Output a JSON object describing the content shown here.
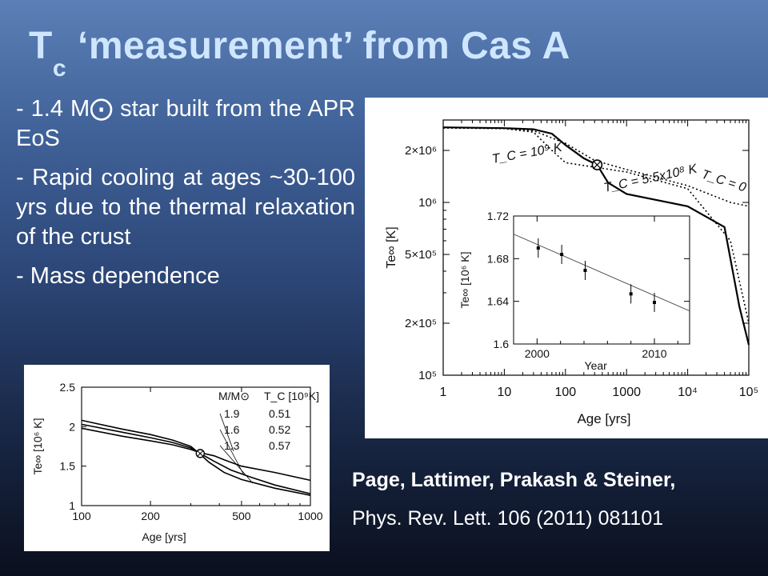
{
  "slide": {
    "title_main": "T",
    "title_sub": "c",
    "title_rest": "‘measurement’ from Cas A",
    "bullets": [
      "- 1.4 M⨀ star built from the APR EoS",
      "- Rapid cooling at ages ~30-100 yrs due to the thermal relaxation of the crust",
      "- Mass dependence"
    ],
    "citation_authors": "Page, Lattimer, Prakash & Steiner,",
    "citation_journal": "Phys. Rev. Lett. 106 (2011) 081101"
  },
  "chart_data": [
    {
      "type": "line",
      "xlabel": "Age [yrs]",
      "ylabel": "Te∞ [K]",
      "xscale": "log",
      "yscale": "log",
      "xlim": [
        1,
        100000
      ],
      "ylim": [
        100000,
        3000000
      ],
      "x_ticks": [
        "1",
        "10",
        "100",
        "1000",
        "10⁴",
        "10⁵"
      ],
      "y_ticks": [
        "10⁵",
        "2×10⁵",
        "5×10⁵",
        "10⁶",
        "2×10⁶"
      ],
      "series": [
        {
          "name": "T_C = 10⁹ K",
          "style": "dotted",
          "points": [
            [
              1,
              2700000
            ],
            [
              10,
              2680000
            ],
            [
              30,
              2550000
            ],
            [
              60,
              2000000
            ],
            [
              100,
              1700000
            ],
            [
              300,
              1600000
            ],
            [
              1000,
              1500000
            ],
            [
              10000,
              1200000
            ],
            [
              50000,
              600000
            ],
            [
              100000,
              200000
            ]
          ]
        },
        {
          "name": "T_C = 5.5x10⁸ K",
          "style": "solid",
          "points": [
            [
              1,
              2720000
            ],
            [
              10,
              2690000
            ],
            [
              30,
              2650000
            ],
            [
              60,
              2500000
            ],
            [
              100,
              2150000
            ],
            [
              200,
              1800000
            ],
            [
              330,
              1650000
            ],
            [
              500,
              1300000
            ],
            [
              1000,
              1120000
            ],
            [
              10000,
              950000
            ],
            [
              40000,
              720000
            ],
            [
              70000,
              250000
            ],
            [
              100000,
              150000
            ]
          ]
        },
        {
          "name": "T_C = 0",
          "style": "dotted",
          "points": [
            [
              1,
              2700000
            ],
            [
              10,
              2680000
            ],
            [
              30,
              2600000
            ],
            [
              100,
              2200000
            ],
            [
              300,
              1750000
            ],
            [
              1000,
              1550000
            ],
            [
              10000,
              1250000
            ],
            [
              50000,
              1000000
            ],
            [
              100000,
              950000
            ]
          ]
        }
      ],
      "annotations": [
        "T_C = 10⁹ K",
        "T_C = 5.5x10⁸ K",
        "T_C = 0"
      ],
      "highlight_point": [
        330,
        1650000
      ]
    },
    {
      "type": "scatter",
      "xlabel": "Year",
      "ylabel": "Te∞ [10⁶ K]",
      "xlim": [
        1998,
        2013
      ],
      "ylim": [
        1.6,
        1.72
      ],
      "x_ticks": [
        "2000",
        "2010"
      ],
      "y_ticks": [
        "1.6",
        "1.64",
        "1.68",
        "1.72"
      ],
      "points": [
        {
          "x": 2000.1,
          "y": 1.69,
          "err": 0.009
        },
        {
          "x": 2002.1,
          "y": 1.684,
          "err": 0.009
        },
        {
          "x": 2004.1,
          "y": 1.669,
          "err": 0.009
        },
        {
          "x": 2008.0,
          "y": 1.647,
          "err": 0.009
        },
        {
          "x": 2010.0,
          "y": 1.639,
          "err": 0.009
        }
      ],
      "fit": [
        [
          1998,
          1.703
        ],
        [
          2013,
          1.631
        ]
      ]
    },
    {
      "type": "line",
      "xlabel": "Age [yrs]",
      "ylabel": "Te∞ [10⁶ K]",
      "xscale": "log",
      "xlim": [
        100,
        1000
      ],
      "ylim": [
        1,
        2.5
      ],
      "x_ticks": [
        "100",
        "200",
        "500",
        "1000"
      ],
      "y_ticks": [
        "1",
        "1.5",
        "2",
        "2.5"
      ],
      "legend_header": [
        "M/M⊙",
        "T_C [10⁹K]"
      ],
      "legend_rows": [
        {
          "mass": "1.9",
          "tc": "0.51"
        },
        {
          "mass": "1.6",
          "tc": "0.52"
        },
        {
          "mass": "1.3",
          "tc": "0.57"
        }
      ],
      "series": [
        {
          "name": "1.9",
          "points": [
            [
              100,
              2.08
            ],
            [
              150,
              1.97
            ],
            [
              200,
              1.9
            ],
            [
              250,
              1.83
            ],
            [
              300,
              1.75
            ],
            [
              330,
              1.65
            ],
            [
              360,
              1.55
            ],
            [
              420,
              1.42
            ],
            [
              500,
              1.33
            ],
            [
              700,
              1.22
            ],
            [
              1000,
              1.13
            ]
          ]
        },
        {
          "name": "1.6",
          "points": [
            [
              100,
              2.03
            ],
            [
              150,
              1.93
            ],
            [
              200,
              1.86
            ],
            [
              250,
              1.8
            ],
            [
              300,
              1.73
            ],
            [
              330,
              1.66
            ],
            [
              380,
              1.56
            ],
            [
              450,
              1.45
            ],
            [
              550,
              1.36
            ],
            [
              700,
              1.26
            ],
            [
              1000,
              1.15
            ]
          ]
        },
        {
          "name": "1.3",
          "points": [
            [
              100,
              1.98
            ],
            [
              150,
              1.88
            ],
            [
              200,
              1.82
            ],
            [
              250,
              1.77
            ],
            [
              300,
              1.71
            ],
            [
              330,
              1.67
            ],
            [
              380,
              1.63
            ],
            [
              420,
              1.58
            ],
            [
              500,
              1.5
            ],
            [
              700,
              1.42
            ],
            [
              1000,
              1.32
            ]
          ]
        }
      ],
      "highlight_point": [
        330,
        1.66
      ]
    }
  ]
}
